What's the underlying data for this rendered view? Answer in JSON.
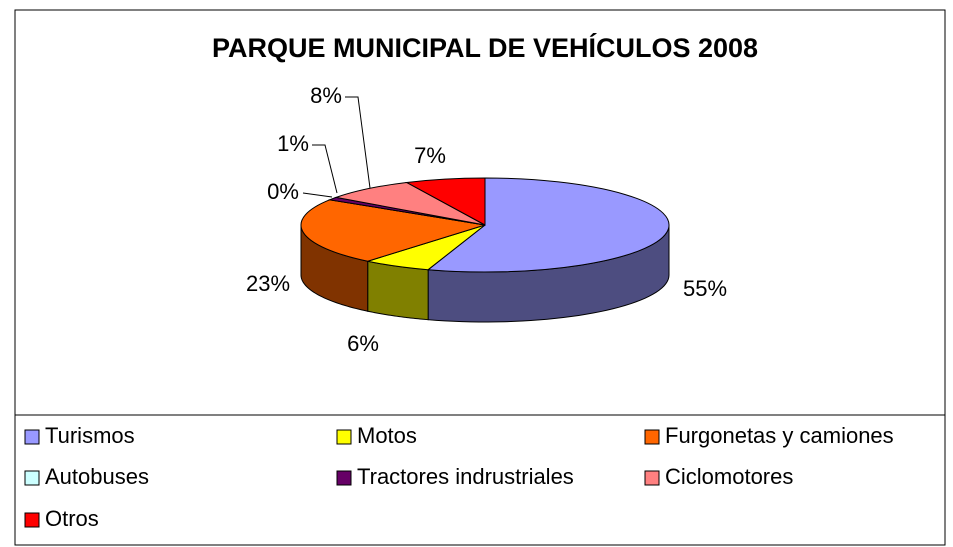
{
  "chart_data": {
    "type": "pie3d",
    "title": "PARQUE MUNICIPAL DE VEHÍCULOS 2008",
    "categories": [
      "Turismos",
      "Motos",
      "Furgonetas y camiones",
      "Autobuses",
      "Tractores indrustriales",
      "Ciclomotores",
      "Otros"
    ],
    "values": [
      55,
      6,
      23,
      0,
      1,
      8,
      7
    ],
    "value_labels": [
      "55%",
      "6%",
      "23%",
      "0%",
      "1%",
      "8%",
      "7%"
    ],
    "colors": [
      "#9999ff",
      "#ffff00",
      "#ff6600",
      "#ccffff",
      "#660066",
      "#ff8080",
      "#ff0000"
    ],
    "legend": "bottom"
  }
}
